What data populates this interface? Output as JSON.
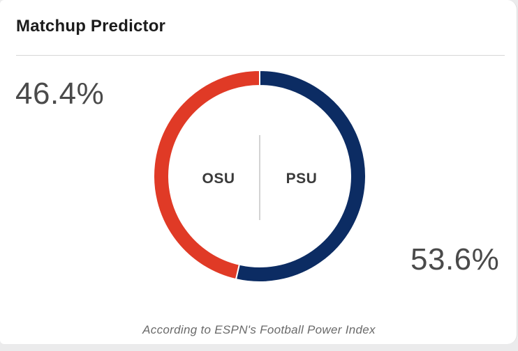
{
  "widget": {
    "title": "Matchup Predictor",
    "footnote": "According to ESPN's Football Power Index"
  },
  "chart_data": {
    "type": "pie",
    "title": "Matchup Predictor",
    "slices": [
      {
        "name": "OSU",
        "value": 46.4,
        "label": "46.4%",
        "color": "#e03a26"
      },
      {
        "name": "PSU",
        "value": 53.6,
        "label": "53.6%",
        "color": "#0c2c63"
      }
    ],
    "donut": true
  }
}
